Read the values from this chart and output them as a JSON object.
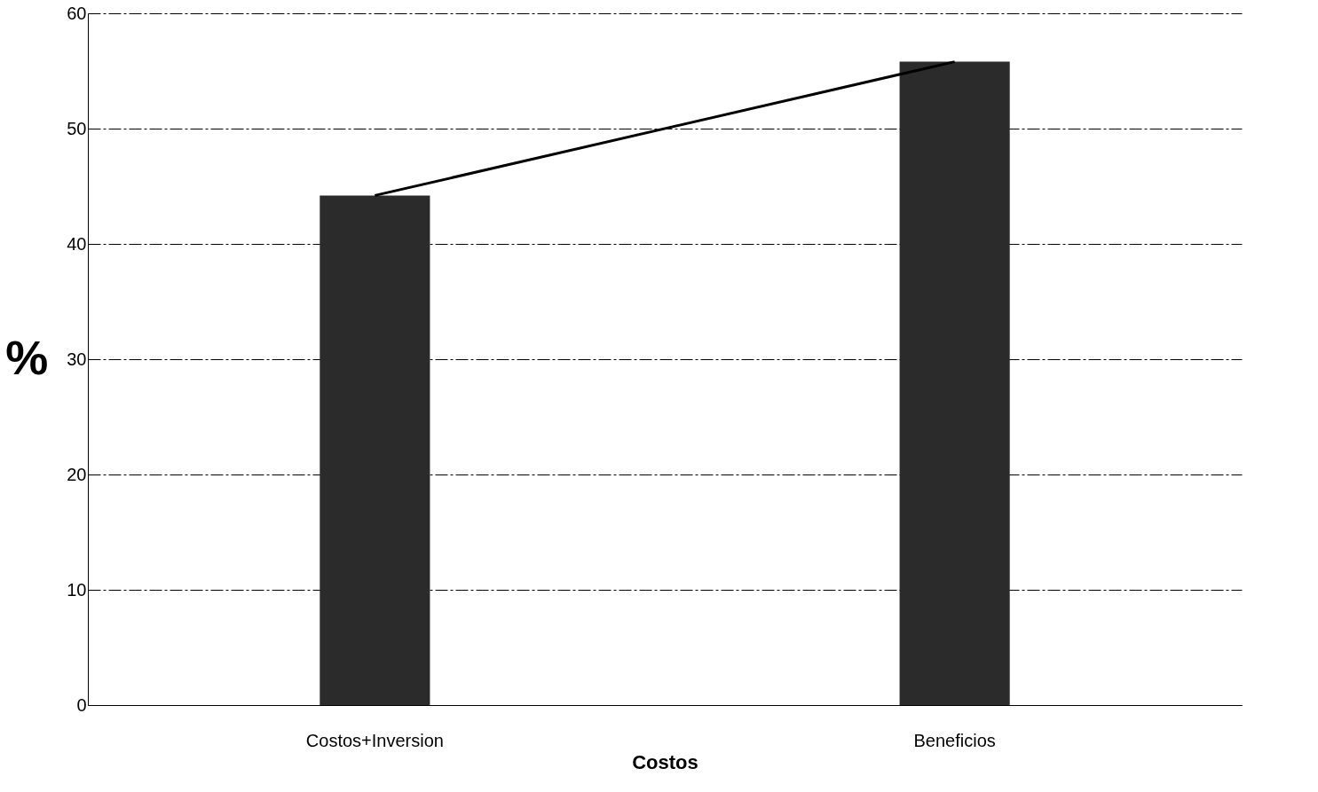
{
  "chart_data": {
    "type": "bar",
    "categories": [
      "Costos+Inversion",
      "Beneficios"
    ],
    "series": [
      {
        "color": "#2b2b2b",
        "values": [
          44.2,
          55.8
        ]
      },
      {
        "type": "line",
        "color": "#000000",
        "values": [
          44.2,
          55.8
        ]
      }
    ],
    "xlabel": "Costos",
    "ylabel": "%",
    "ylim": [
      0,
      60
    ],
    "yticks": [
      0,
      10,
      20,
      30,
      40,
      50,
      60
    ],
    "grid": "y",
    "marker": "none",
    "line_style": "solid"
  }
}
